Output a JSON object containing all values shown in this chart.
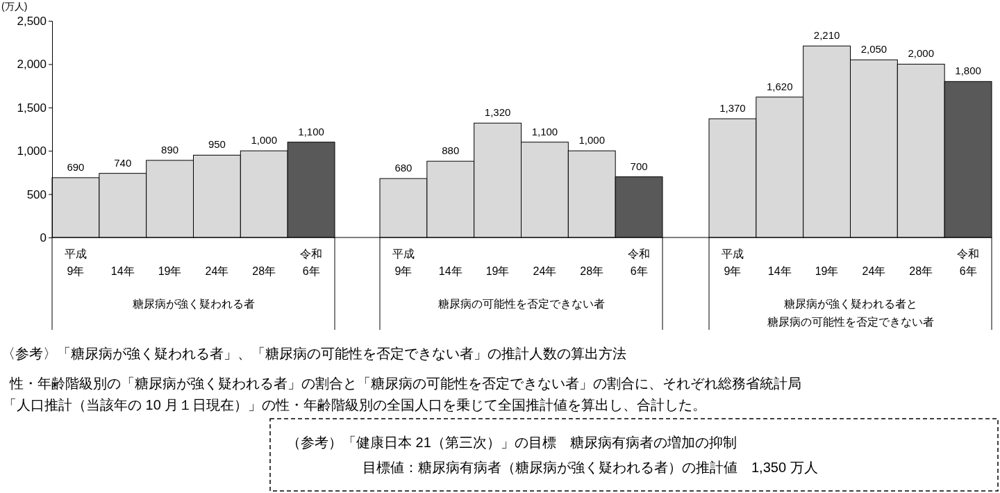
{
  "chart_data": [
    {
      "type": "bar",
      "ylabel": "(万人)",
      "xlabel": "糖尿病が強く疑われる者",
      "categories": [
        "平成\n9年",
        "14年",
        "19年",
        "24年",
        "28年",
        "令和\n6年"
      ],
      "values": [
        690,
        740,
        890,
        950,
        1000,
        1100
      ],
      "value_labels": [
        "690",
        "740",
        "890",
        "950",
        "1,000",
        "1,100"
      ],
      "colors": [
        "#d9d9d9",
        "#d9d9d9",
        "#d9d9d9",
        "#d9d9d9",
        "#d9d9d9",
        "#595959"
      ],
      "ylim": [
        0,
        2500
      ],
      "yticks": [
        0,
        500,
        {
          "value": 1000,
          "label": "1,000"
        },
        {
          "value": 1500,
          "label": "1,500"
        },
        {
          "value": 2000,
          "label": "2,000"
        },
        {
          "value": 2500,
          "label": "2,500"
        }
      ],
      "annotations": [
        "〈参考〉「糖尿病が強く疑われる者」、「糖尿病の可能性を否定できない者」の推計人数の算出方法",
        "性・年齢階級別の「糖尿病が強く疑われる者」の割合と「糖尿病の可能性を否定できない者」の割合に、それぞれ総務省統計局",
        "「人口推計（当該年の 10 月１日現在）」の性・年齢階級別の全国人口を乗じて全国推計値を算出し、合計した。",
        "（参考）「健康日本 21（第三次）」の目標　糖尿病有病者の増加の抑制",
        "目標値：糖尿病有病者（糖尿病が強く疑われる者）の推計値　1,350 万人"
      ]
    },
    {
      "type": "bar",
      "xlabel": "糖尿病の可能性を否定できない者",
      "tick_labels": "x",
      "categories": [
        "平成\n9年",
        "14年",
        "19年",
        "24年",
        "28年",
        "令和\n6年"
      ],
      "values": [
        680,
        880,
        1320,
        1100,
        1000,
        700
      ],
      "value_labels": [
        "680",
        "880",
        "1,320",
        "1,100",
        "1,000",
        "700"
      ],
      "colors": [
        "#d9d9d9",
        "#d9d9d9",
        "#d9d9d9",
        "#d9d9d9",
        "#d9d9d9",
        "#595959"
      ],
      "ylim": [
        0,
        2500
      ]
    },
    {
      "type": "bar",
      "xlabel": "糖尿病が強く疑われる者と糖尿病の可能性を否定できない者",
      "tick_labels": "x",
      "categories": [
        "平成\n9年",
        "14年",
        "19年",
        "24年",
        "28年",
        "令和\n6年"
      ],
      "values": [
        1370,
        1620,
        2210,
        2050,
        2000,
        1800
      ],
      "value_labels": [
        "1,370",
        "1,620",
        "2,210",
        "2,050",
        "2,000",
        "1,800"
      ],
      "colors": [
        "#d9d9d9",
        "#d9d9d9",
        "#d9d9d9",
        "#d9d9d9",
        "#d9d9d9",
        "#595959"
      ],
      "ylim": [
        0,
        2500
      ]
    }
  ]
}
